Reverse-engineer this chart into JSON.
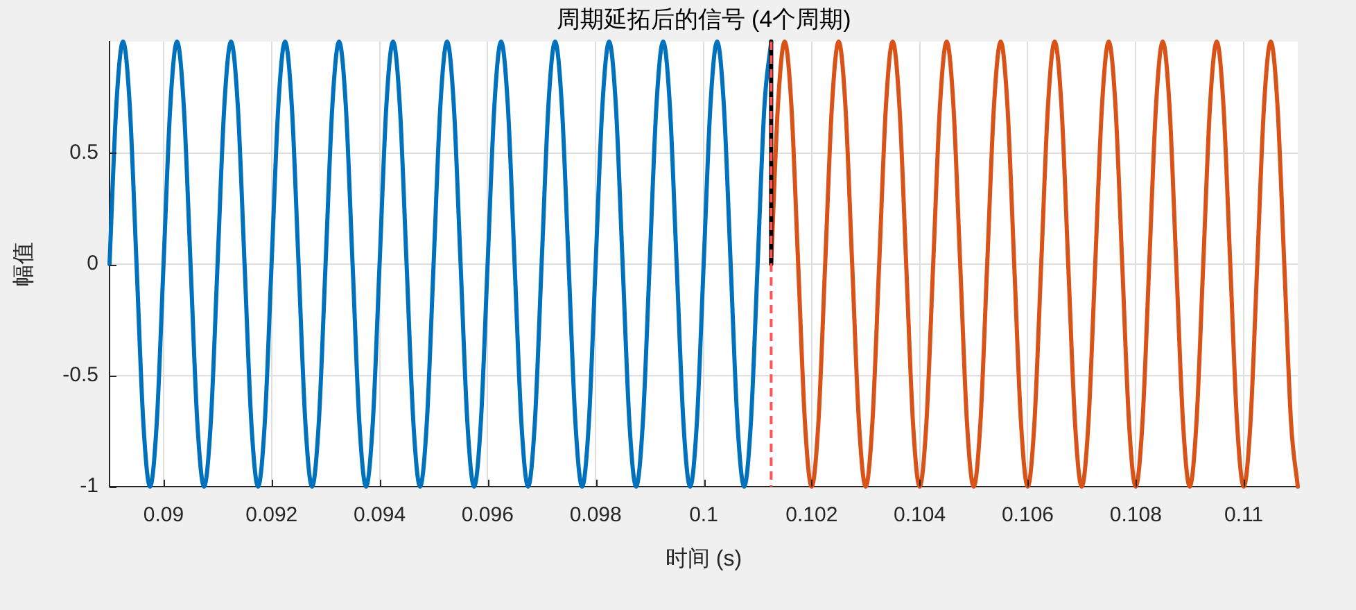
{
  "chart_data": {
    "type": "line",
    "title": "周期延拓后的信号 (4个周期)",
    "xlabel": "时间 (s)",
    "ylabel": "幅值",
    "xlim": [
      0.089,
      0.111
    ],
    "xticks": [
      0.09,
      0.092,
      0.094,
      0.096,
      0.098,
      0.1,
      0.102,
      0.104,
      0.106,
      0.108,
      0.11
    ],
    "ylim": [
      -1,
      1
    ],
    "yticks": [
      -1,
      -0.5,
      0,
      0.5
    ],
    "grid": true,
    "series": [
      {
        "color": "#0072bd",
        "x": [
          0.089,
          0.089125,
          0.08925,
          0.089375,
          0.0895,
          0.089625,
          0.08975,
          0.089875,
          0.09,
          0.090125,
          0.09025,
          0.090375,
          0.0905,
          0.090625,
          0.09075,
          0.090875,
          0.091,
          0.091125,
          0.09125,
          0.091375,
          0.0915,
          0.091625,
          0.09175,
          0.091875,
          0.092,
          0.092125,
          0.09225,
          0.092375,
          0.0925,
          0.092625,
          0.09275,
          0.092875,
          0.093,
          0.093125,
          0.09325,
          0.093375,
          0.0935,
          0.093625,
          0.09375,
          0.093875,
          0.094,
          0.094125,
          0.09425,
          0.094375,
          0.0945,
          0.094625,
          0.09475,
          0.094875,
          0.095,
          0.095125,
          0.09525,
          0.095375,
          0.0955,
          0.095625,
          0.09575,
          0.095875,
          0.096,
          0.096125,
          0.09625,
          0.096375,
          0.0965,
          0.096625,
          0.09675,
          0.096875,
          0.097,
          0.097125,
          0.09725,
          0.097375,
          0.0975,
          0.097625,
          0.09775,
          0.097875,
          0.098,
          0.098125,
          0.09825,
          0.098375,
          0.0985,
          0.098625,
          0.09875,
          0.098875,
          0.099,
          0.099125,
          0.09925,
          0.099375,
          0.0995,
          0.099625,
          0.09975,
          0.099875,
          0.1,
          0.100125,
          0.10025,
          0.100375,
          0.1005,
          0.100625,
          0.10075,
          0.100875,
          0.101,
          0.101125,
          0.10125
        ],
        "values": [
          0,
          0.71,
          1,
          0.71,
          0,
          -0.71,
          -1,
          -0.71,
          0,
          0.71,
          1,
          0.71,
          0,
          -0.71,
          -1,
          -0.71,
          0,
          0.71,
          1,
          0.71,
          0,
          -0.71,
          -1,
          -0.71,
          0,
          0.71,
          1,
          0.71,
          0,
          -0.71,
          -1,
          -0.71,
          0,
          0.71,
          1,
          0.71,
          0,
          -0.71,
          -1,
          -0.71,
          0,
          0.71,
          1,
          0.71,
          0,
          -0.71,
          -1,
          -0.71,
          0,
          0.71,
          1,
          0.71,
          0,
          -0.71,
          -1,
          -0.71,
          0,
          0.71,
          1,
          0.71,
          0,
          -0.71,
          -1,
          -0.71,
          0,
          0.71,
          1,
          0.71,
          0,
          -0.71,
          -1,
          -0.71,
          0,
          0.71,
          1,
          0.71,
          0,
          -0.71,
          -1,
          -0.71,
          0,
          0.71,
          1,
          0.71,
          0,
          -0.71,
          -1,
          -0.71,
          0,
          0.71,
          1,
          0.71,
          0,
          -0.71,
          -1,
          -0.71,
          0,
          0.71,
          1
        ]
      },
      {
        "color": "#d95319",
        "x": [
          0.10125,
          0.101375,
          0.1015,
          0.101625,
          0.10175,
          0.101875,
          0.102,
          0.102125,
          0.10225,
          0.102375,
          0.1025,
          0.102625,
          0.10275,
          0.102875,
          0.103,
          0.103125,
          0.10325,
          0.103375,
          0.1035,
          0.103625,
          0.10375,
          0.103875,
          0.104,
          0.104125,
          0.10425,
          0.104375,
          0.1045,
          0.104625,
          0.10475,
          0.104875,
          0.105,
          0.105125,
          0.10525,
          0.105375,
          0.1055,
          0.105625,
          0.10575,
          0.105875,
          0.106,
          0.106125,
          0.10625,
          0.106375,
          0.1065,
          0.106625,
          0.10675,
          0.106875,
          0.107,
          0.107125,
          0.10725,
          0.107375,
          0.1075,
          0.107625,
          0.10775,
          0.107875,
          0.108,
          0.108125,
          0.10825,
          0.108375,
          0.1085,
          0.108625,
          0.10875,
          0.108875,
          0.109,
          0.109125,
          0.10925,
          0.109375,
          0.1095,
          0.109625,
          0.10975,
          0.109875,
          0.11,
          0.110125,
          0.11025,
          0.110375,
          0.1105,
          0.110625,
          0.11075,
          0.110875,
          0.111
        ],
        "values": [
          0,
          0.71,
          1,
          0.71,
          0,
          -0.71,
          -1,
          -0.71,
          0,
          0.71,
          1,
          0.71,
          0,
          -0.71,
          -1,
          -0.71,
          0,
          0.71,
          1,
          0.71,
          0,
          -0.71,
          -1,
          -0.71,
          0,
          0.71,
          1,
          0.71,
          0,
          -0.71,
          -1,
          -0.71,
          0,
          0.71,
          1,
          0.71,
          0,
          -0.71,
          -1,
          -0.71,
          0,
          0.71,
          1,
          0.71,
          0,
          -0.71,
          -1,
          -0.71,
          0,
          0.71,
          1,
          0.71,
          0,
          -0.71,
          -1,
          -0.71,
          0,
          0.71,
          1,
          0.71,
          0,
          -0.71,
          -1,
          -0.71,
          0,
          0.71,
          1,
          0.71,
          0,
          -0.71,
          -1,
          -0.71,
          0,
          0.71,
          1,
          0.71,
          0,
          -0.71,
          -1
        ]
      },
      {
        "color": "#000000",
        "x": [
          0.10125,
          0.10125
        ],
        "values": [
          1,
          0
        ]
      }
    ],
    "ref_lines": [
      {
        "axis": "x",
        "value": 0.10125,
        "color": "#ff5555",
        "line_style": "dashed"
      }
    ]
  }
}
